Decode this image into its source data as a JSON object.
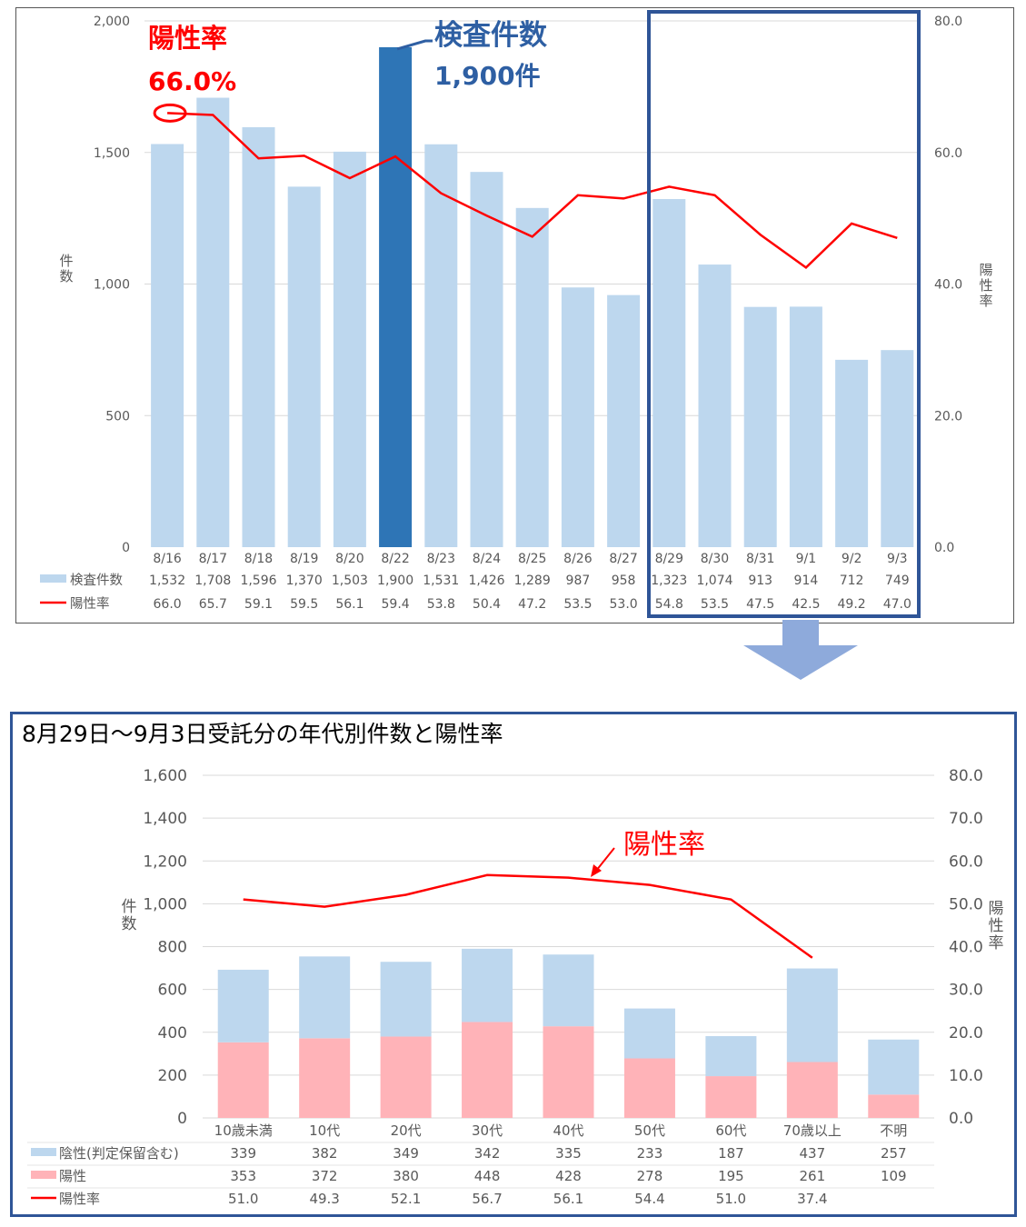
{
  "colors": {
    "bar_light": "#bdd7ee",
    "bar_highlight": "#2e75b6",
    "line": "#ff0000",
    "annotation_blue": "#2e5fa3",
    "frame": "#2f5597",
    "arrow": "#8eaadb",
    "negative": "#bdd7ee",
    "positive": "#ffb3b8",
    "grid": "#d9d9d9",
    "tick_text": "#595959"
  },
  "top": {
    "annotation_rate_label": "陽性率",
    "annotation_rate_value": "66.0%",
    "annotation_count_label": "検査件数",
    "annotation_count_value": "1,900件"
  },
  "bottom": {
    "title": "8月29日～9月3日受託分の年代別件数と陽性率",
    "annotation_rate_label": "陽性率"
  },
  "chart_data": [
    {
      "type": "bar",
      "combo_line_series": "陽性率",
      "categories": [
        "8/16",
        "8/17",
        "8/18",
        "8/19",
        "8/20",
        "8/22",
        "8/23",
        "8/24",
        "8/25",
        "8/26",
        "8/27",
        "8/29",
        "8/30",
        "8/31",
        "9/1",
        "9/2",
        "9/3"
      ],
      "series": [
        {
          "name": "検査件数",
          "type": "bar",
          "axis": "left",
          "values": [
            1532,
            1708,
            1596,
            1370,
            1503,
            1900,
            1531,
            1426,
            1289,
            987,
            958,
            1323,
            1074,
            913,
            914,
            712,
            749
          ],
          "labels": [
            "1,532",
            "1,708",
            "1,596",
            "1,370",
            "1,503",
            "1,900",
            "1,531",
            "1,426",
            "1,289",
            "987",
            "958",
            "1,323",
            "1,074",
            "913",
            "914",
            "712",
            "749"
          ]
        },
        {
          "name": "陽性率",
          "type": "line",
          "axis": "right",
          "values": [
            66.0,
            65.7,
            59.1,
            59.5,
            56.1,
            59.4,
            53.8,
            50.4,
            47.2,
            53.5,
            53.0,
            54.8,
            53.5,
            47.5,
            42.5,
            49.2,
            47.0
          ],
          "labels": [
            "66.0",
            "65.7",
            "59.1",
            "59.5",
            "56.1",
            "59.4",
            "53.8",
            "50.4",
            "47.2",
            "53.5",
            "53.0",
            "54.8",
            "53.5",
            "47.5",
            "42.5",
            "49.2",
            "47.0"
          ]
        }
      ],
      "highlight_category": "8/22",
      "boxed_range": [
        "8/29",
        "9/3"
      ],
      "ylabel": "件数",
      "y2label": "陽性率",
      "ylim": [
        0,
        2000
      ],
      "y2lim": [
        0,
        80
      ],
      "yticks": [
        "0",
        "500",
        "1,000",
        "1,500",
        "2,000"
      ],
      "y2ticks": [
        "0.0",
        "20.0",
        "40.0",
        "60.0",
        "80.0"
      ],
      "grid": true,
      "legend": "data-table"
    },
    {
      "type": "bar",
      "stacked": true,
      "title": "8月29日～9月3日受託分の年代別件数と陽性率",
      "categories": [
        "10歳未満",
        "10代",
        "20代",
        "30代",
        "40代",
        "50代",
        "60代",
        "70歳以上",
        "不明"
      ],
      "series": [
        {
          "name": "陰性(判定保留含む)",
          "type": "bar",
          "axis": "left",
          "values": [
            339,
            382,
            349,
            342,
            335,
            233,
            187,
            437,
            257
          ],
          "labels": [
            "339",
            "382",
            "349",
            "342",
            "335",
            "233",
            "187",
            "437",
            "257"
          ]
        },
        {
          "name": "陽性",
          "type": "bar",
          "axis": "left",
          "values": [
            353,
            372,
            380,
            448,
            428,
            278,
            195,
            261,
            109
          ],
          "labels": [
            "353",
            "372",
            "380",
            "448",
            "428",
            "278",
            "195",
            "261",
            "109"
          ]
        },
        {
          "name": "陽性率",
          "type": "line",
          "axis": "right",
          "values": [
            51.0,
            49.3,
            52.1,
            56.7,
            56.1,
            54.4,
            51.0,
            37.4,
            null
          ],
          "labels": [
            "51.0",
            "49.3",
            "52.1",
            "56.7",
            "56.1",
            "54.4",
            "51.0",
            "37.4",
            ""
          ]
        }
      ],
      "ylabel": "件数",
      "y2label": "陽性率",
      "ylim": [
        0,
        1600
      ],
      "y2lim": [
        0,
        80
      ],
      "yticks": [
        "0",
        "200",
        "400",
        "600",
        "800",
        "1,000",
        "1,200",
        "1,400",
        "1,600"
      ],
      "y2ticks": [
        "0.0",
        "10.0",
        "20.0",
        "30.0",
        "40.0",
        "50.0",
        "60.0",
        "70.0",
        "80.0"
      ],
      "grid": true,
      "legend": "data-table"
    }
  ]
}
